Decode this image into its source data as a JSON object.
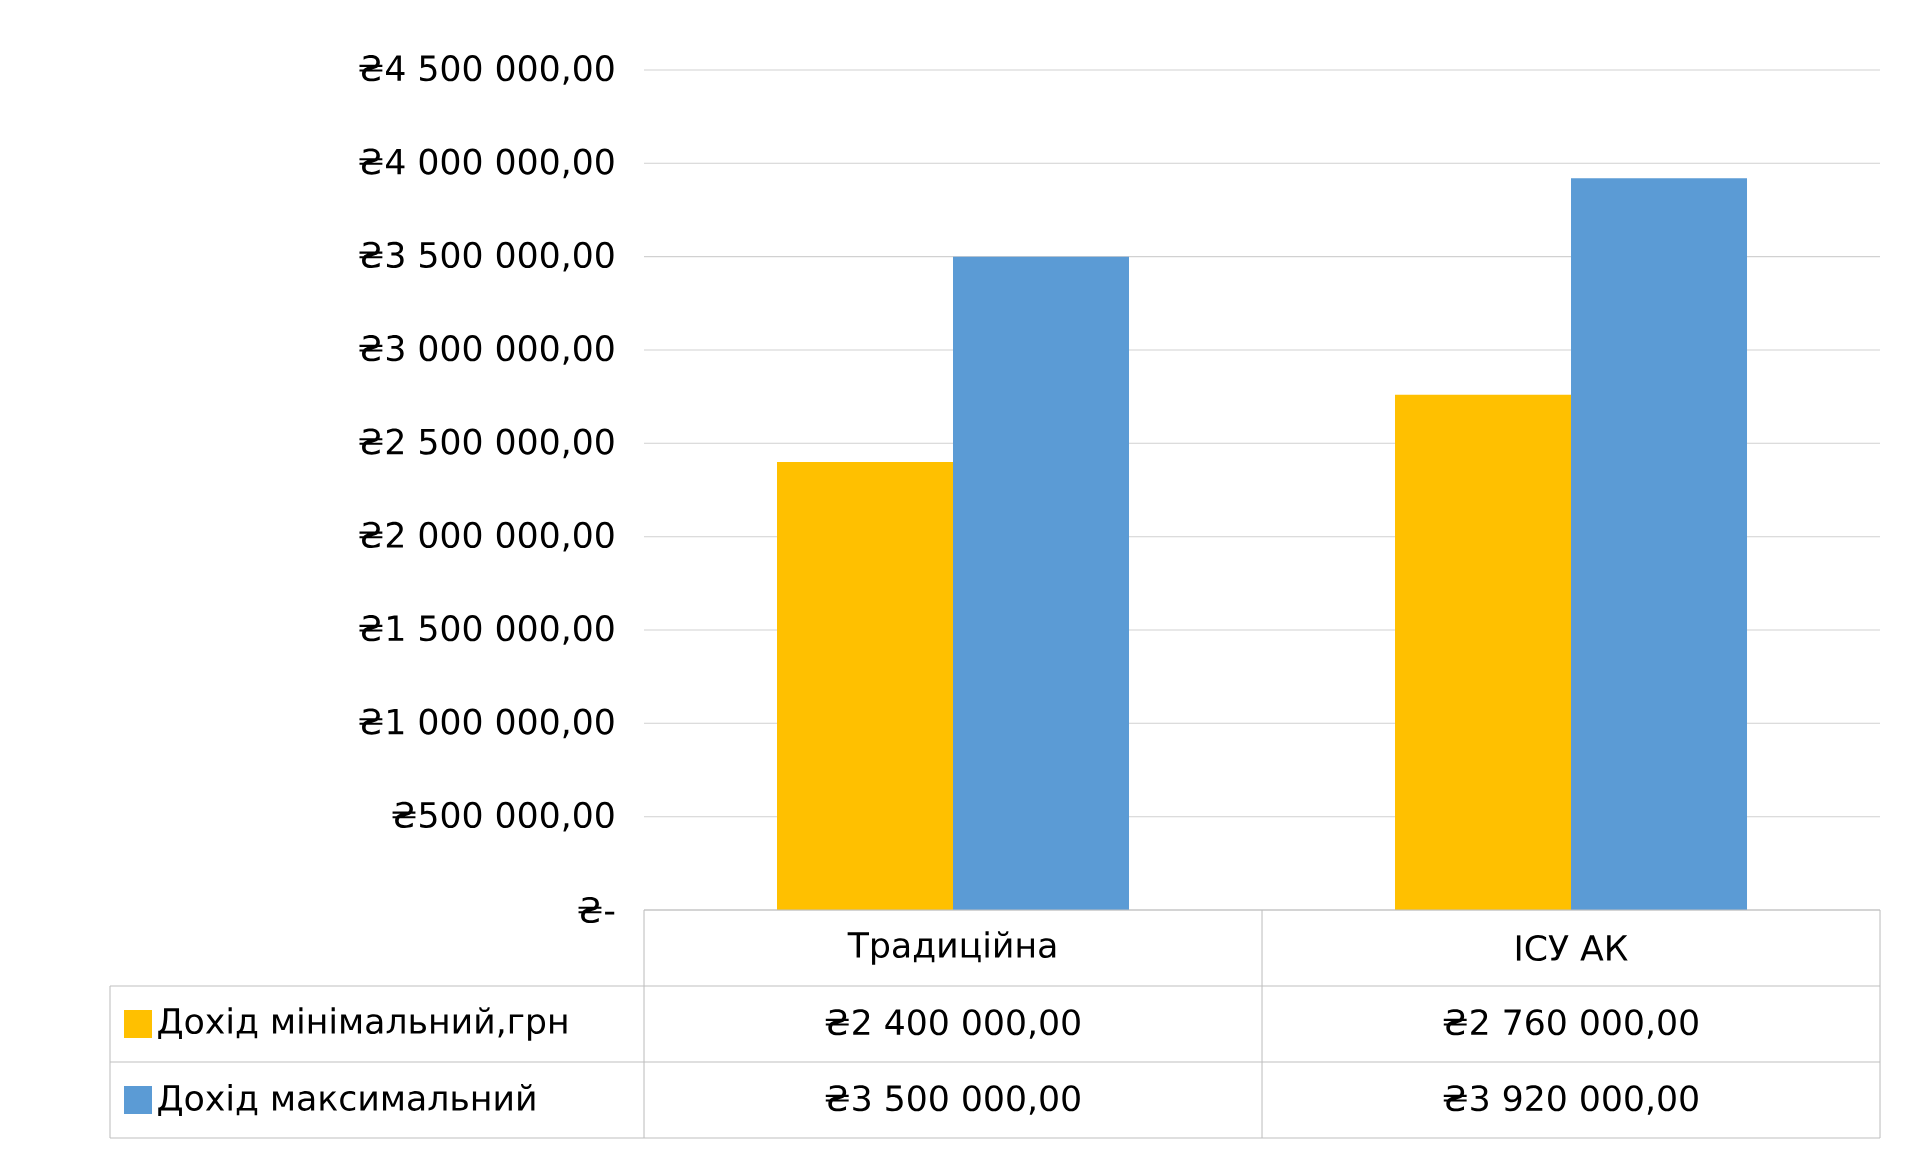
{
  "chart_data": {
    "type": "bar",
    "categories": [
      "Традиційна",
      "ІСУ АК"
    ],
    "series": [
      {
        "name": "Дохід мінімальний,грн",
        "color": "#ffc000",
        "values": [
          2400000,
          2760000
        ],
        "value_labels": [
          "₴2 400 000,00",
          "₴2 760 000,00"
        ]
      },
      {
        "name": "Дохід максимальний",
        "color": "#5b9bd5",
        "values": [
          3500000,
          3920000
        ],
        "value_labels": [
          "₴3 500 000,00",
          "₴3 920 000,00"
        ]
      }
    ],
    "ylim": [
      0,
      4500000
    ],
    "yticks": [
      {
        "value": 0,
        "label": "₴-"
      },
      {
        "value": 500000,
        "label": "₴500 000,00"
      },
      {
        "value": 1000000,
        "label": "₴1 000 000,00"
      },
      {
        "value": 1500000,
        "label": "₴1 500 000,00"
      },
      {
        "value": 2000000,
        "label": "₴2 000 000,00"
      },
      {
        "value": 2500000,
        "label": "₴2 500 000,00"
      },
      {
        "value": 3000000,
        "label": "₴3 000 000,00"
      },
      {
        "value": 3500000,
        "label": "₴3 500 000,00"
      },
      {
        "value": 4000000,
        "label": "₴4 000 000,00"
      },
      {
        "value": 4500000,
        "label": "₴4 500 000,00"
      }
    ],
    "grid": "y",
    "legend": "bottom"
  }
}
